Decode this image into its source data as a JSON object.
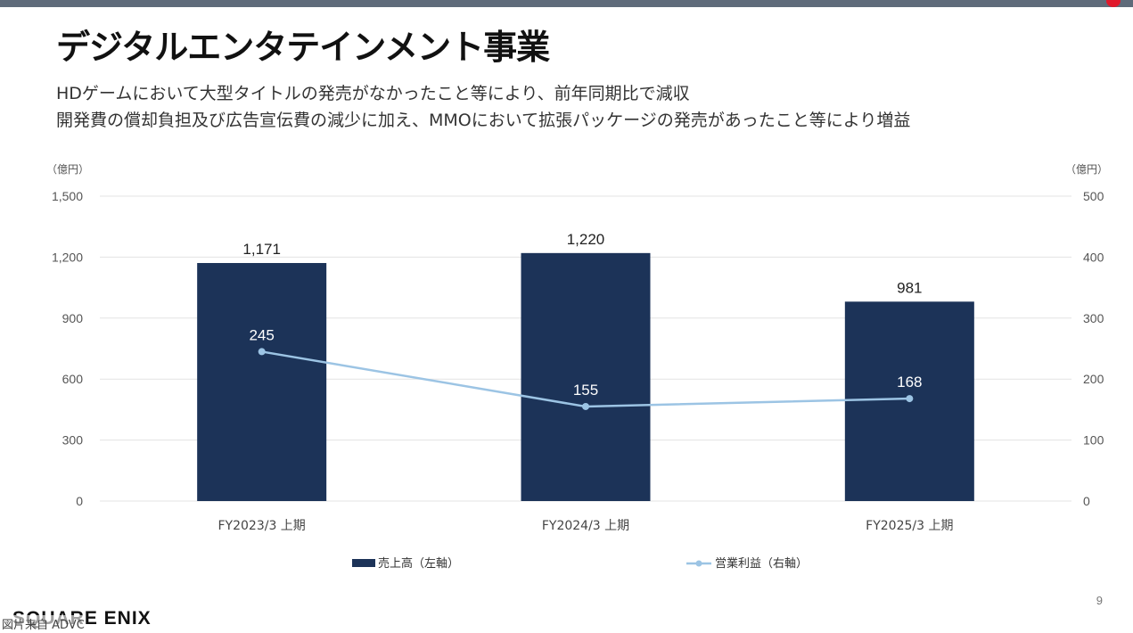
{
  "page": {
    "title": "デジタルエンタテインメント事業",
    "description_lines": [
      "HDゲームにおいて大型タイトルの発売がなかったこと等により、前年同期比で減収",
      "開発費の償却負担及び広告宣伝費の減少に加え、MMOにおいて拡張パッケージの発売があったこと等により増益"
    ],
    "page_number": "9",
    "logo_text": "SQUARE ENIX",
    "source_text": "図片来自 ADVC"
  },
  "colors": {
    "bar": "#1c3358",
    "line": "#9cc4e4",
    "grid": "#e3e3e3",
    "top_bar": "#5f6b7a"
  },
  "chart_data": {
    "type": "bar",
    "categories": [
      "FY2023/3 上期",
      "FY2024/3 上期",
      "FY2025/3 上期"
    ],
    "series": [
      {
        "name": "売上高（左軸）",
        "type": "bar",
        "axis": "left",
        "values": [
          1171,
          1220,
          981
        ],
        "labels": [
          "1,171",
          "1,220",
          "981"
        ]
      },
      {
        "name": "営業利益（右軸）",
        "type": "line",
        "axis": "right",
        "values": [
          245,
          155,
          168
        ],
        "labels": [
          "245",
          "155",
          "168"
        ]
      }
    ],
    "y_left": {
      "unit": "（億円）",
      "ylim": [
        0,
        1500
      ],
      "ticks": [
        "0",
        "300",
        "600",
        "900",
        "1,200",
        "1,500"
      ]
    },
    "y_right": {
      "unit": "（億円）",
      "ylim": [
        0,
        500
      ],
      "ticks": [
        "0",
        "100",
        "200",
        "300",
        "400",
        "500"
      ]
    },
    "grid": true,
    "legend": "bottom"
  }
}
